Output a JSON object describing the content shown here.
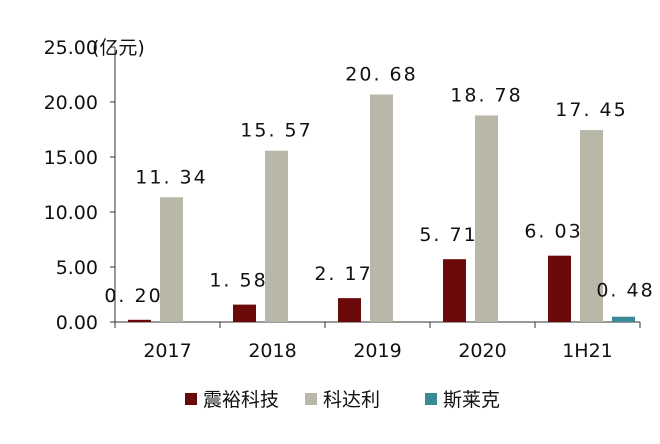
{
  "chart_data": {
    "type": "bar",
    "unit_label": "(亿元)",
    "categories": [
      "2017",
      "2018",
      "2019",
      "2020",
      "1H21"
    ],
    "series": [
      {
        "name": "震裕科技",
        "color": "#6b0a0a",
        "values": [
          0.2,
          1.58,
          2.17,
          5.71,
          6.03
        ],
        "labels": [
          "0. 20",
          "1. 58",
          "2. 17",
          "5. 71",
          "6. 03"
        ]
      },
      {
        "name": "科达利",
        "color": "#b9b8a8",
        "values": [
          11.34,
          15.57,
          20.68,
          18.78,
          17.45
        ],
        "labels": [
          "11. 34",
          "15. 57",
          "20. 68",
          "18. 78",
          "17. 45"
        ]
      },
      {
        "name": "斯莱克",
        "color": "#3b8a9a",
        "values": [
          null,
          null,
          null,
          null,
          0.48
        ],
        "labels": [
          "",
          "",
          "",
          "",
          "0. 48"
        ]
      }
    ],
    "y_ticks": [
      "0.00",
      "5.00",
      "10.00",
      "15.00",
      "20.00",
      "25.00"
    ],
    "ylim": [
      0,
      25
    ],
    "grid": false,
    "legend_position": "bottom"
  }
}
